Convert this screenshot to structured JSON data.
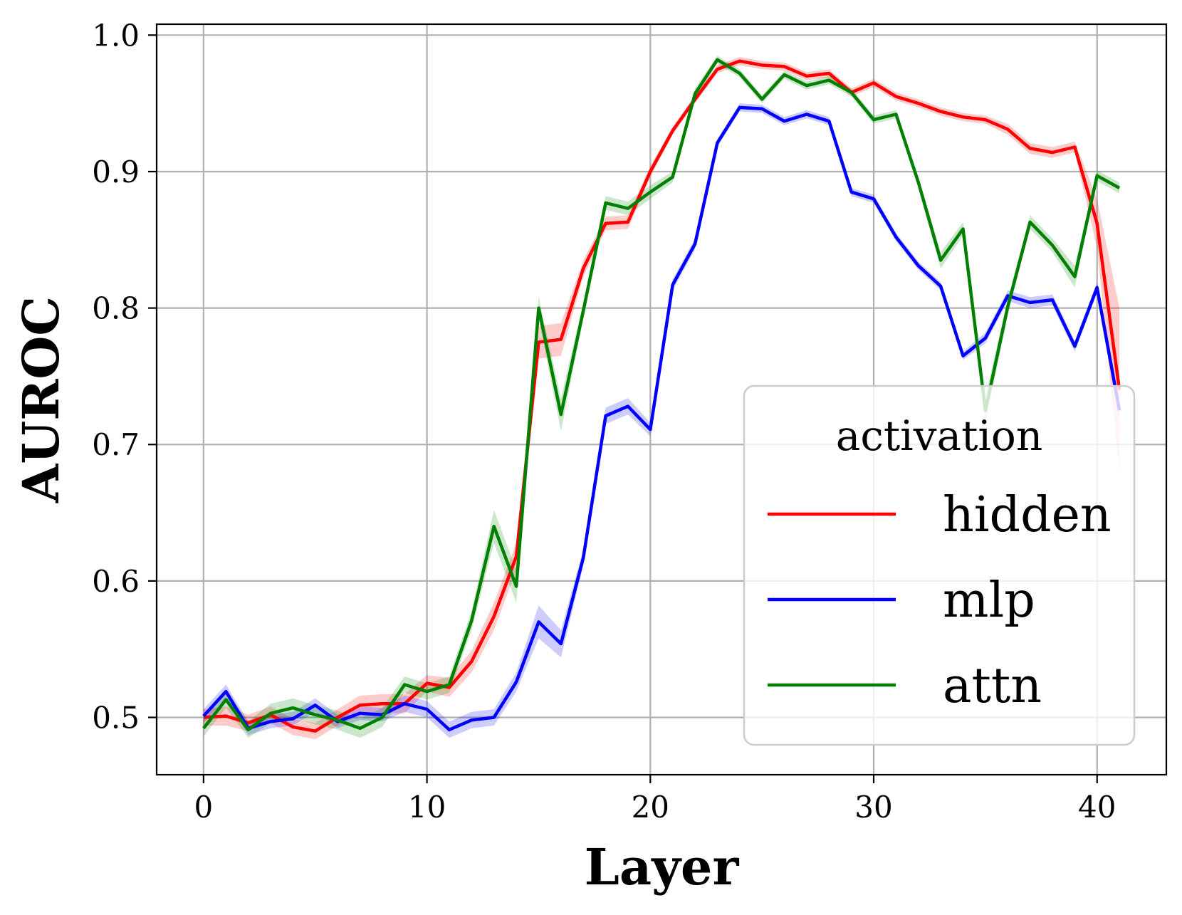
{
  "chart_data": {
    "type": "line",
    "xlabel": "Layer",
    "ylabel": "AUROC",
    "xlim": [
      -2.1,
      43.1
    ],
    "ylim": [
      0.458,
      1.008
    ],
    "xticks": [
      0,
      10,
      20,
      30,
      40
    ],
    "xtick_labels": [
      "0",
      "10",
      "20",
      "30",
      "40"
    ],
    "yticks": [
      0.5,
      0.6,
      0.7,
      0.8,
      0.9,
      1.0
    ],
    "ytick_labels": [
      "0.5",
      "0.6",
      "0.7",
      "0.8",
      "0.9",
      "1.0"
    ],
    "grid": true,
    "legend": {
      "title": "activation",
      "position": "lower-right"
    },
    "x": [
      0,
      1,
      2,
      3,
      4,
      5,
      6,
      7,
      8,
      9,
      10,
      11,
      12,
      13,
      14,
      15,
      16,
      17,
      18,
      19,
      20,
      21,
      22,
      23,
      24,
      25,
      26,
      27,
      28,
      29,
      30,
      31,
      32,
      33,
      34,
      35,
      36,
      37,
      38,
      39,
      40,
      41
    ],
    "series": [
      {
        "name": "hidden",
        "color": "#ff0000",
        "values": [
          0.5,
          0.501,
          0.496,
          0.502,
          0.493,
          0.49,
          0.5,
          0.509,
          0.51,
          0.51,
          0.525,
          0.522,
          0.541,
          0.574,
          0.618,
          0.775,
          0.777,
          0.829,
          0.862,
          0.863,
          0.9,
          0.93,
          0.953,
          0.975,
          0.981,
          0.978,
          0.977,
          0.97,
          0.972,
          0.958,
          0.965,
          0.955,
          0.95,
          0.944,
          0.94,
          0.938,
          0.931,
          0.917,
          0.914,
          0.918,
          0.862,
          0.74
        ],
        "band": [
          0.006,
          0.007,
          0.006,
          0.006,
          0.006,
          0.006,
          0.006,
          0.007,
          0.007,
          0.007,
          0.006,
          0.007,
          0.008,
          0.01,
          0.01,
          0.012,
          0.012,
          0.006,
          0.005,
          0.005,
          0.004,
          0.003,
          0.003,
          0.003,
          0.003,
          0.003,
          0.003,
          0.003,
          0.003,
          0.003,
          0.003,
          0.003,
          0.003,
          0.003,
          0.003,
          0.003,
          0.004,
          0.004,
          0.004,
          0.004,
          0.018,
          0.06
        ]
      },
      {
        "name": "mlp",
        "color": "#0000ff",
        "values": [
          0.501,
          0.519,
          0.492,
          0.497,
          0.499,
          0.509,
          0.497,
          0.503,
          0.502,
          0.51,
          0.506,
          0.491,
          0.498,
          0.5,
          0.526,
          0.57,
          0.554,
          0.617,
          0.721,
          0.728,
          0.711,
          0.817,
          0.847,
          0.921,
          0.947,
          0.946,
          0.937,
          0.942,
          0.937,
          0.885,
          0.88,
          0.852,
          0.831,
          0.816,
          0.765,
          0.778,
          0.809,
          0.804,
          0.806,
          0.772,
          0.815,
          0.725
        ],
        "band": [
          0.005,
          0.005,
          0.005,
          0.005,
          0.005,
          0.005,
          0.005,
          0.005,
          0.005,
          0.006,
          0.006,
          0.006,
          0.006,
          0.006,
          0.007,
          0.012,
          0.01,
          0.006,
          0.006,
          0.006,
          0.005,
          0.004,
          0.004,
          0.003,
          0.003,
          0.003,
          0.003,
          0.003,
          0.003,
          0.003,
          0.003,
          0.003,
          0.003,
          0.003,
          0.003,
          0.004,
          0.004,
          0.004,
          0.004,
          0.004,
          0.004,
          0.006
        ]
      },
      {
        "name": "attn",
        "color": "#008000",
        "values": [
          0.492,
          0.513,
          0.491,
          0.503,
          0.507,
          0.502,
          0.498,
          0.492,
          0.5,
          0.524,
          0.519,
          0.524,
          0.571,
          0.64,
          0.596,
          0.8,
          0.722,
          0.798,
          0.877,
          0.873,
          0.885,
          0.896,
          0.957,
          0.982,
          0.972,
          0.953,
          0.971,
          0.963,
          0.967,
          0.958,
          0.938,
          0.942,
          0.892,
          0.835,
          0.858,
          0.725,
          0.801,
          0.863,
          0.846,
          0.823,
          0.897,
          0.888
        ],
        "band": [
          0.006,
          0.006,
          0.006,
          0.007,
          0.007,
          0.007,
          0.007,
          0.007,
          0.007,
          0.006,
          0.006,
          0.006,
          0.007,
          0.012,
          0.012,
          0.008,
          0.012,
          0.006,
          0.005,
          0.005,
          0.005,
          0.004,
          0.004,
          0.003,
          0.003,
          0.003,
          0.003,
          0.003,
          0.003,
          0.003,
          0.003,
          0.003,
          0.004,
          0.006,
          0.005,
          0.01,
          0.006,
          0.005,
          0.005,
          0.008,
          0.004,
          0.004
        ]
      }
    ]
  }
}
